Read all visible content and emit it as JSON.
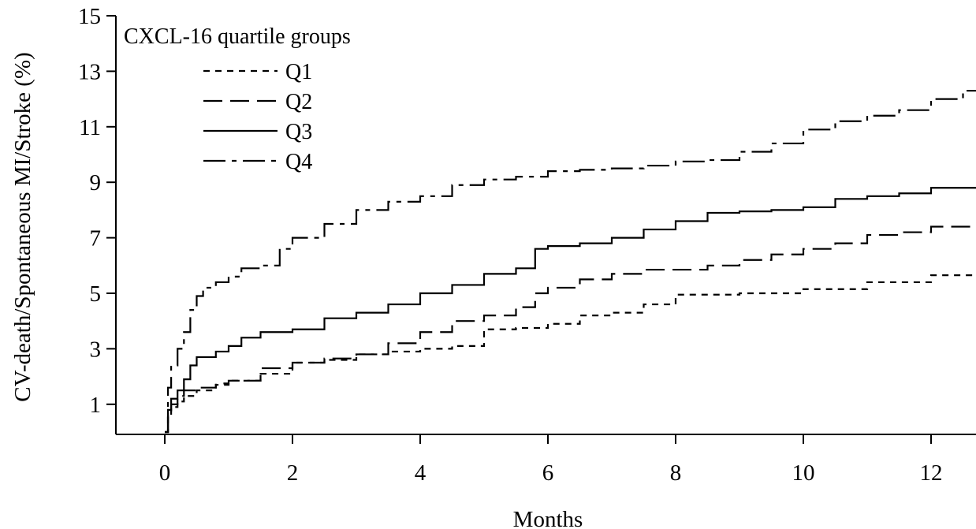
{
  "chart_data": {
    "type": "line",
    "step": true,
    "xlabel": "Months",
    "ylabel": "CV-death/Spontaneous MI/Stroke (%)",
    "xlim": [
      0,
      12.8
    ],
    "ylim": [
      0,
      15
    ],
    "xticks": [
      0,
      2,
      4,
      6,
      8,
      10,
      12
    ],
    "yticks": [
      1,
      3,
      5,
      7,
      9,
      11,
      13,
      15
    ],
    "grid": false,
    "legend": {
      "title": "CXCL-16 quartile groups",
      "placement": "top-left"
    },
    "series": [
      {
        "name": "Q1",
        "dash": "short-dash",
        "x": [
          0,
          0.05,
          0.1,
          0.2,
          0.3,
          0.5,
          0.8,
          1.0,
          1.5,
          2.0,
          2.5,
          3.0,
          3.5,
          4.0,
          4.5,
          5.0,
          5.5,
          6.0,
          6.5,
          7.0,
          7.5,
          8.0,
          9.0,
          10.0,
          11.0,
          12.0,
          12.8
        ],
        "y": [
          0,
          0.6,
          0.9,
          1.1,
          1.3,
          1.5,
          1.7,
          1.85,
          2.1,
          2.5,
          2.6,
          2.8,
          2.9,
          3.0,
          3.1,
          3.7,
          3.75,
          3.9,
          4.2,
          4.3,
          4.6,
          4.95,
          5.0,
          5.15,
          5.4,
          5.65,
          5.7
        ]
      },
      {
        "name": "Q2",
        "dash": "long-dash",
        "x": [
          0,
          0.05,
          0.1,
          0.2,
          0.3,
          0.5,
          0.8,
          1.0,
          1.5,
          2.0,
          2.5,
          3.0,
          3.5,
          4.0,
          4.5,
          5.0,
          5.5,
          5.8,
          6.0,
          6.5,
          7.0,
          7.5,
          8.0,
          8.5,
          9.0,
          9.5,
          10.0,
          10.5,
          11.0,
          11.5,
          12.0,
          12.8
        ],
        "y": [
          0,
          0.7,
          1.0,
          1.3,
          1.5,
          1.6,
          1.75,
          1.85,
          2.3,
          2.5,
          2.65,
          2.8,
          3.2,
          3.6,
          4.0,
          4.2,
          4.5,
          5.0,
          5.2,
          5.5,
          5.7,
          5.85,
          5.85,
          6.0,
          6.2,
          6.4,
          6.6,
          6.8,
          7.1,
          7.2,
          7.4,
          7.6
        ]
      },
      {
        "name": "Q3",
        "dash": "solid",
        "x": [
          0,
          0.05,
          0.1,
          0.2,
          0.3,
          0.4,
          0.5,
          0.8,
          1.0,
          1.2,
          1.5,
          2.0,
          2.5,
          3.0,
          3.5,
          4.0,
          4.5,
          5.0,
          5.5,
          5.8,
          6.0,
          6.5,
          7.0,
          7.5,
          8.0,
          8.5,
          9.0,
          9.5,
          10.0,
          10.5,
          11.0,
          11.5,
          12.0,
          12.8
        ],
        "y": [
          0,
          0.8,
          1.2,
          1.5,
          1.9,
          2.4,
          2.7,
          2.9,
          3.1,
          3.4,
          3.6,
          3.7,
          4.1,
          4.3,
          4.6,
          5.0,
          5.3,
          5.7,
          5.9,
          6.6,
          6.7,
          6.8,
          7.0,
          7.3,
          7.6,
          7.9,
          7.95,
          8.0,
          8.1,
          8.4,
          8.5,
          8.6,
          8.8,
          9.0
        ]
      },
      {
        "name": "Q4",
        "dash": "long-short",
        "x": [
          0,
          0.05,
          0.1,
          0.2,
          0.3,
          0.4,
          0.5,
          0.6,
          0.8,
          1.0,
          1.2,
          1.5,
          1.8,
          2.0,
          2.5,
          3.0,
          3.5,
          4.0,
          4.5,
          5.0,
          5.5,
          6.0,
          6.5,
          7.0,
          7.5,
          8.0,
          8.5,
          9.0,
          9.5,
          10.0,
          10.5,
          11.0,
          11.5,
          12.0,
          12.5,
          12.8
        ],
        "y": [
          0,
          1.6,
          2.4,
          3.0,
          3.6,
          4.4,
          4.9,
          5.2,
          5.4,
          5.6,
          5.9,
          6.0,
          6.6,
          7.0,
          7.5,
          8.0,
          8.3,
          8.5,
          8.9,
          9.1,
          9.2,
          9.4,
          9.45,
          9.5,
          9.6,
          9.75,
          9.8,
          10.1,
          10.4,
          10.9,
          11.2,
          11.4,
          11.6,
          12.0,
          12.3,
          12.8
        ]
      }
    ]
  }
}
